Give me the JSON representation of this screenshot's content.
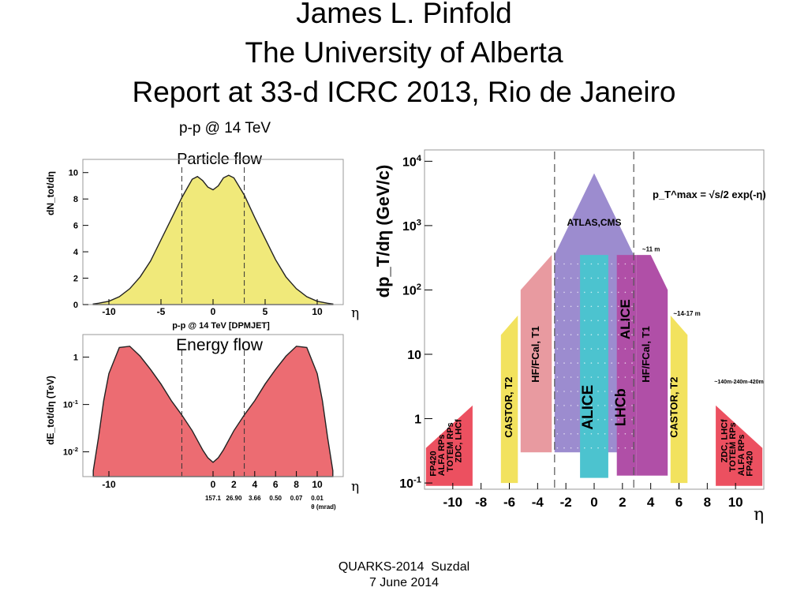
{
  "slide": {
    "title_lines": [
      "James L. Pinfold",
      "The University of Alberta",
      "Report at 33-d ICRC 2013, Rio de Janeiro"
    ],
    "footer_lines": [
      "QUARKS-2014  Suzdal",
      "7 June 2014"
    ]
  },
  "chart_data": [
    {
      "type": "area",
      "header": "p-p @ 14 TeV",
      "title": "Particle flow",
      "xlabel": "p-p @ 14 TeV [DPMJET]",
      "x_symbol": "η",
      "ylabel": "dN_tot/dη",
      "xlim": [
        -12.5,
        12.5
      ],
      "ylim": [
        0,
        11
      ],
      "x_ticks": [
        "-10",
        "-5",
        "0",
        "5",
        "10"
      ],
      "y_ticks": [
        "0",
        "2",
        "4",
        "6",
        "8",
        "10"
      ],
      "color": "#f0e97a",
      "series": [
        {
          "x": [
            -11.5,
            -11,
            -10,
            -9,
            -8,
            -7,
            -6,
            -5,
            -4,
            -3,
            -2,
            -1.5,
            -1,
            -0.5,
            0,
            0.5,
            1,
            1.5,
            2,
            3,
            4,
            5,
            6,
            7,
            8,
            9,
            10,
            11,
            11.5
          ],
          "y": [
            0.05,
            0.1,
            0.25,
            0.6,
            1.2,
            2.1,
            3.3,
            4.9,
            6.5,
            8.1,
            9.5,
            9.7,
            9.4,
            8.9,
            8.7,
            9.0,
            9.6,
            9.8,
            9.6,
            8.3,
            6.6,
            5.0,
            3.4,
            2.1,
            1.2,
            0.6,
            0.25,
            0.1,
            0.05
          ]
        }
      ],
      "dashed_x": [
        -3,
        3
      ]
    },
    {
      "type": "area",
      "title": "Energy flow",
      "ylabel": "dE_tot/dη (TeV)",
      "x_symbol": "η",
      "log_y": true,
      "xlim": [
        -12.5,
        12.5
      ],
      "ylim": [
        0.003,
        3
      ],
      "x_ticks": [
        "-10",
        "0",
        "2",
        "4",
        "6",
        "8",
        "10"
      ],
      "y_ticks": [
        "10^-2",
        "10^-1",
        "1"
      ],
      "theta_labels": [
        "157.1",
        "26.90",
        "3.66",
        "0.50",
        "0.07",
        "0.01"
      ],
      "theta_axis_label": "θ (mrad)",
      "color": "#ec6c72",
      "series": [
        {
          "x": [
            -11.5,
            -11,
            -10.5,
            -10,
            -9,
            -8,
            -7,
            -6,
            -5,
            -4,
            -3,
            -2,
            -1,
            -0.5,
            0,
            0.5,
            1,
            2,
            3,
            4,
            5,
            6,
            7,
            8,
            9,
            10,
            10.5,
            11,
            11.5
          ],
          "y": [
            0.004,
            0.02,
            0.12,
            0.45,
            1.6,
            1.7,
            1.05,
            0.55,
            0.27,
            0.12,
            0.06,
            0.028,
            0.011,
            0.0075,
            0.006,
            0.0075,
            0.011,
            0.028,
            0.06,
            0.12,
            0.27,
            0.55,
            1.05,
            1.7,
            1.6,
            0.45,
            0.12,
            0.02,
            0.004
          ]
        }
      ],
      "dashed_x": [
        -3,
        3
      ]
    },
    {
      "type": "bar",
      "ylabel": "dp_T/dη (GeV/c)",
      "x_symbol": "η",
      "log_y": true,
      "xlim": [
        -12,
        12
      ],
      "ylim": [
        0.08,
        15000
      ],
      "x_ticks": [
        "-10",
        "-8",
        "-6",
        "-4",
        "-2",
        "0",
        "2",
        "4",
        "6",
        "8",
        "10"
      ],
      "y_ticks": [
        "10^-1",
        "1",
        "10",
        "10^2",
        "10^3",
        "10^4"
      ],
      "formula": "p_T^max = √s/2 exp(-η)",
      "distance_labels": [
        "~11 m",
        "~14-17 m",
        "~140m-240m-420m"
      ],
      "detectors": [
        {
          "label": "ATLAS,CMS",
          "color": "#9c8ccf"
        },
        {
          "label": "ALICE",
          "color": "#4cc3cf"
        },
        {
          "label": "LHCb",
          "color": "#b04fa7"
        },
        {
          "label": "ALICE",
          "color": "#b04fa7"
        },
        {
          "label": "HF/FCal, T1",
          "color": "#e89aa0"
        },
        {
          "label": "HF/FCal, T1",
          "color": "#b04fa7"
        },
        {
          "label": "CASTOR, T2",
          "color": "#f2e25e"
        },
        {
          "label": "CASTOR, T2",
          "color": "#f2e25e"
        },
        {
          "label": "FP420",
          "color": "#ec5060"
        },
        {
          "label": "ALFA RPs",
          "color": "#ec5060"
        },
        {
          "label": "TOTEM RPs",
          "color": "#ec5060"
        },
        {
          "label": "ZDC, LHCf",
          "color": "#ec5060"
        },
        {
          "label": "ZDC, LHCf",
          "color": "#ec5060"
        },
        {
          "label": "TOTEM RPs",
          "color": "#ec5060"
        },
        {
          "label": "ALFA RPs",
          "color": "#ec5060"
        },
        {
          "label": "FP420",
          "color": "#ec5060"
        }
      ],
      "dashed_x": [
        -2.8,
        2.8
      ]
    }
  ]
}
